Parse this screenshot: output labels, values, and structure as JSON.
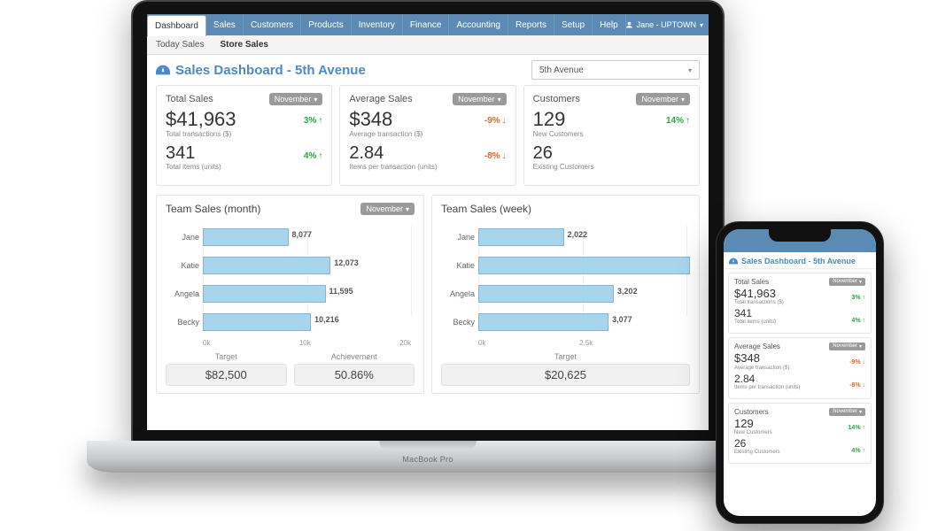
{
  "brand_laptop": "MacBook Pro",
  "topnav": {
    "tabs": [
      "Dashboard",
      "Sales",
      "Customers",
      "Products",
      "Inventory",
      "Finance",
      "Accounting",
      "Reports",
      "Setup",
      "Help"
    ],
    "active_index": 0,
    "user_label": "Jane - UPTOWN"
  },
  "subnav": {
    "tabs": [
      "Today Sales",
      "Store Sales"
    ],
    "active_index": 1
  },
  "page": {
    "title": "Sales Dashboard - 5th Avenue",
    "store_selected": "5th Avenue"
  },
  "month_label": "November",
  "cards": {
    "total_sales": {
      "title": "Total Sales",
      "m1_val": "$41,963",
      "m1_lbl": "Total transactions ($)",
      "m1_delta": "3%",
      "m1_dir": "up",
      "m2_val": "341",
      "m2_lbl": "Total items (units)",
      "m2_delta": "4%",
      "m2_dir": "up"
    },
    "avg_sales": {
      "title": "Average Sales",
      "m1_val": "$348",
      "m1_lbl": "Average transaction ($)",
      "m1_delta": "-9%",
      "m1_dir": "down",
      "m2_val": "2.84",
      "m2_lbl": "Items per transaction (units)",
      "m2_delta": "-8%",
      "m2_dir": "down"
    },
    "customers": {
      "title": "Customers",
      "m1_val": "129",
      "m1_lbl": "New Customers",
      "m1_delta": "14%",
      "m1_dir": "up",
      "m2_val": "26",
      "m2_lbl": "Existing Customers",
      "m2_delta": "",
      "m2_dir": ""
    }
  },
  "charts": {
    "month": {
      "title": "Team Sales (month)",
      "type": "bar-horizontal",
      "bar_color": "#a8d5ec",
      "bar_border": "#7fb8d3",
      "xmax": 20000,
      "xticks": [
        "0k",
        "10k",
        "20k"
      ],
      "series": [
        {
          "label": "Jane",
          "value": 8077,
          "value_label": "8,077"
        },
        {
          "label": "Katie",
          "value": 12073,
          "value_label": "12,073"
        },
        {
          "label": "Angela",
          "value": 11595,
          "value_label": "11,595"
        },
        {
          "label": "Becky",
          "value": 10216,
          "value_label": "10,216"
        }
      ],
      "footer": {
        "target_lbl": "Target",
        "target_val": "$82,500",
        "ach_lbl": "Achievement",
        "ach_val": "50.86%"
      }
    },
    "week": {
      "title": "Team Sales (week)",
      "type": "bar-horizontal",
      "bar_color": "#a8d5ec",
      "bar_border": "#7fb8d3",
      "xmax": 5000,
      "xticks": [
        "0k",
        "2.5k"
      ],
      "series": [
        {
          "label": "Jane",
          "value": 2022,
          "value_label": "2,022"
        },
        {
          "label": "Katie",
          "value": 5000,
          "value_label": ""
        },
        {
          "label": "Angela",
          "value": 3202,
          "value_label": "3,202"
        },
        {
          "label": "Becky",
          "value": 3077,
          "value_label": "3,077"
        }
      ],
      "footer": {
        "target_lbl": "Target",
        "target_val": "$20,625",
        "ach_lbl": "",
        "ach_val": ""
      }
    }
  },
  "phone": {
    "title": "Sales Dashboard - 5th Avenue",
    "cards": {
      "total_sales": {
        "title": "Total Sales",
        "m1_val": "$41,963",
        "m1_lbl": "Total transactions ($)",
        "m1_delta": "3%",
        "m1_dir": "up",
        "m2_val": "341",
        "m2_lbl": "Total items (units)",
        "m2_delta": "4%",
        "m2_dir": "up"
      },
      "avg_sales": {
        "title": "Average Sales",
        "m1_val": "$348",
        "m1_lbl": "Average transaction ($)",
        "m1_delta": "-9%",
        "m1_dir": "down",
        "m2_val": "2.84",
        "m2_lbl": "Items per transaction (units)",
        "m2_delta": "-8%",
        "m2_dir": "down"
      },
      "customers": {
        "title": "Customers",
        "m1_val": "129",
        "m1_lbl": "New Customers",
        "m1_delta": "14%",
        "m1_dir": "up",
        "m2_val": "26",
        "m2_lbl": "Existing Customers",
        "m2_delta": "4%",
        "m2_dir": "up"
      }
    }
  },
  "colors": {
    "nav": "#5b8bb4",
    "accent": "#4a8ac6",
    "up": "#28a745",
    "down": "#e06a2b"
  }
}
